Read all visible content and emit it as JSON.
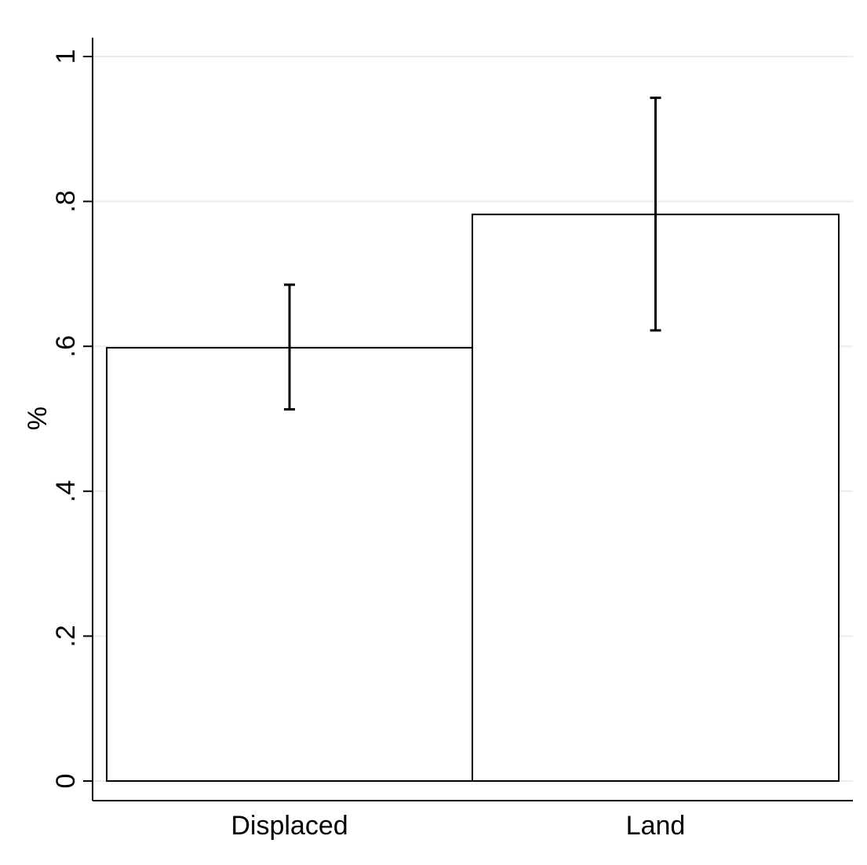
{
  "chart_data": {
    "type": "bar",
    "title": "",
    "xlabel": "",
    "ylabel": "%",
    "ylim": [
      0,
      1
    ],
    "yticks": [
      0,
      0.2,
      0.4,
      0.6,
      0.8,
      1
    ],
    "ytick_labels": [
      "0",
      ".2",
      ".4",
      ".6",
      ".8",
      "1"
    ],
    "categories": [
      "Displaced",
      "Land"
    ],
    "values": [
      0.598,
      0.782
    ],
    "error_bars": [
      {
        "low": 0.513,
        "high": 0.685
      },
      {
        "low": 0.622,
        "high": 0.943
      }
    ],
    "grid": true,
    "colors": {
      "bar_fill": "#ffffff",
      "bar_edge": "#000000",
      "grid": "#e6eef0",
      "axis": "#000000",
      "error_bar": "#000000"
    }
  }
}
